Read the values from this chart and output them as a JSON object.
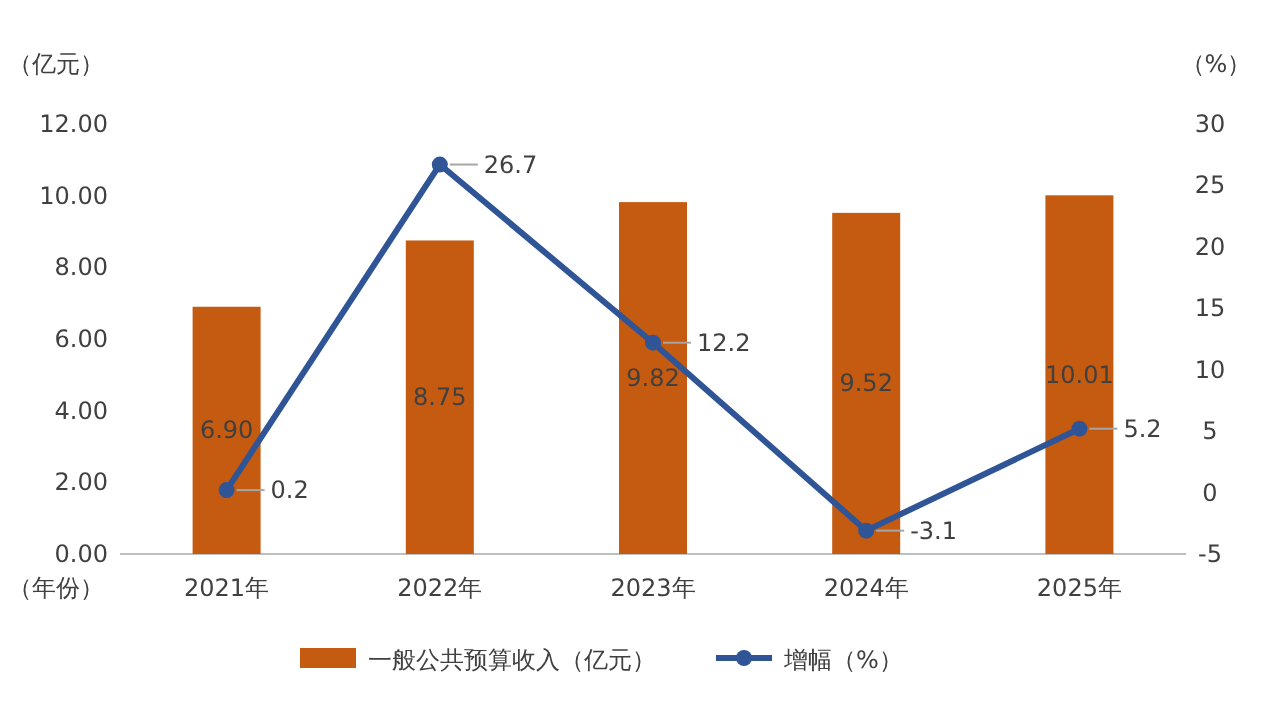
{
  "chart_data": {
    "type": "bar",
    "ylabel": "（亿元）",
    "y2label": "（%）",
    "xlabel": "（年份）",
    "categories": [
      "2021年",
      "2022年",
      "2023年",
      "2024年",
      "2025年"
    ],
    "series": [
      {
        "name": "一般公共预算收入（亿元）",
        "color": "#c55a11",
        "values": [
          6.9,
          8.75,
          9.82,
          9.52,
          10.01
        ],
        "value_labels": [
          "6.90",
          "8.75",
          "9.82",
          "9.52",
          "10.01"
        ]
      },
      {
        "name": "增幅（%）",
        "type": "line",
        "axis": "y2",
        "color": "#2f5597",
        "marker": "circle",
        "values": [
          0.2,
          26.7,
          12.2,
          -3.1,
          5.2
        ],
        "value_labels": [
          "0.2",
          "26.7",
          "12.2",
          "-3.1",
          "5.2"
        ]
      }
    ],
    "ylim": [
      0,
      12
    ],
    "yticks": [
      {
        "value": 0,
        "label": "0.00"
      },
      {
        "value": 2,
        "label": "2.00"
      },
      {
        "value": 4,
        "label": "4.00"
      },
      {
        "value": 6,
        "label": "6.00"
      },
      {
        "value": 8,
        "label": "8.00"
      },
      {
        "value": 10,
        "label": "10.00"
      },
      {
        "value": 12,
        "label": "12.00"
      }
    ],
    "y2lim": [
      -5,
      30
    ],
    "y2ticks": [
      -5,
      0,
      5,
      10,
      15,
      20,
      25,
      30
    ],
    "legend": "bottom"
  }
}
